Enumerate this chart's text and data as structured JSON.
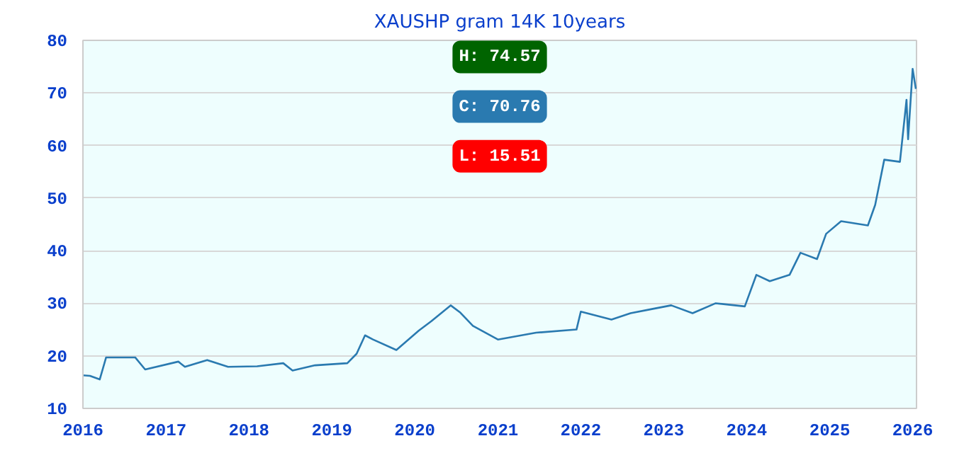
{
  "chart_data": {
    "type": "line",
    "title": "XAUSHP gram 14K 10years",
    "x": [
      "2016-01-01",
      "2016-02-01",
      "2016-03-15",
      "2016-04-12",
      "2016-08-18",
      "2016-10-01",
      "2017-02-24",
      "2017-03-25",
      "2017-07-01",
      "2017-10-01",
      "2018-02-06",
      "2018-06-01",
      "2018-07-12",
      "2018-10-19",
      "2019-03-10",
      "2019-04-20",
      "2019-05-27",
      "2019-07-01",
      "2019-10-12",
      "2020-01-19",
      "2020-03-14",
      "2020-06-07",
      "2020-07-20",
      "2020-09-13",
      "2021-01-01",
      "2021-06-18",
      "2021-12-13",
      "2022-01-01",
      "2022-05-16",
      "2022-08-08",
      "2022-11-10",
      "2023-02-03",
      "2023-05-08",
      "2023-08-18",
      "2023-12-24",
      "2024-02-13",
      "2024-04-12",
      "2024-07-08",
      "2024-08-25",
      "2024-11-06",
      "2024-12-16",
      "2025-02-20",
      "2025-06-18",
      "2025-07-20",
      "2025-08-29",
      "2025-11-06",
      "2025-12-05",
      "2025-12-12",
      "2026-01-01",
      "2026-01-15"
    ],
    "series": [
      {
        "color": "#2a7ab0",
        "values": [
          16.3,
          16.2,
          15.51,
          19.7,
          19.7,
          17.4,
          18.9,
          17.9,
          19.2,
          17.9,
          18.0,
          18.6,
          17.2,
          18.2,
          18.6,
          20.4,
          23.9,
          23.1,
          21.1,
          24.8,
          26.6,
          29.6,
          28.2,
          25.7,
          23.1,
          24.4,
          25.0,
          28.4,
          26.9,
          28.1,
          28.9,
          29.6,
          28.1,
          30.0,
          29.4,
          35.4,
          34.2,
          35.4,
          39.6,
          38.4,
          43.2,
          45.6,
          44.8,
          48.7,
          57.3,
          56.9,
          68.7,
          61.2,
          74.57,
          70.76
        ]
      }
    ],
    "xlim": [
      "2016-01-01",
      "2026-01-18"
    ],
    "ylim": [
      10,
      80
    ],
    "xticks": [
      "2016",
      "2017",
      "2018",
      "2019",
      "2020",
      "2021",
      "2022",
      "2023",
      "2024",
      "2025",
      "2026"
    ],
    "yticks": [
      10,
      20,
      30,
      40,
      50,
      60,
      70,
      80
    ],
    "grid": "y",
    "annotations": [
      "H: 74.57",
      "C: 70.76",
      "L: 15.51"
    ]
  }
}
